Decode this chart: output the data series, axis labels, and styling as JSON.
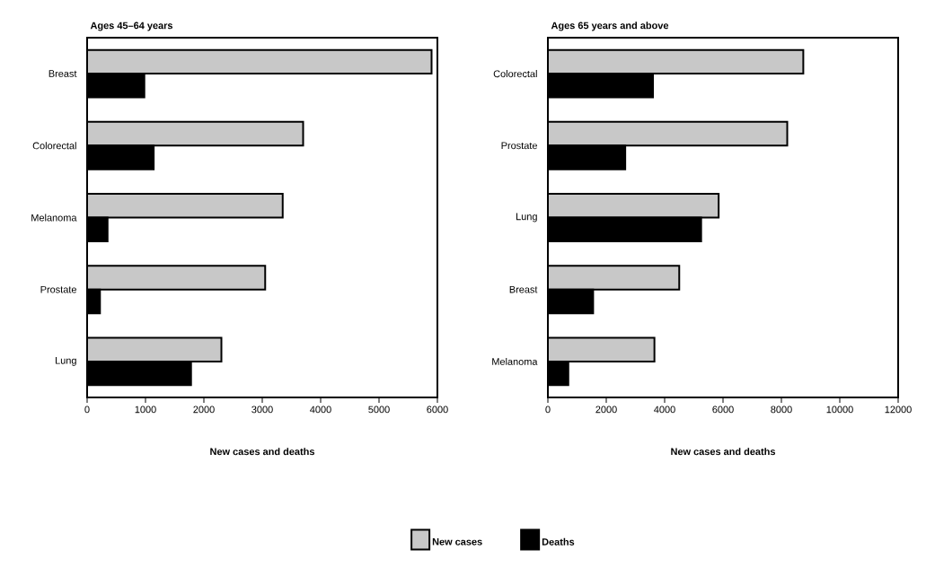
{
  "chart_data": [
    {
      "type": "bar",
      "orientation": "horizontal",
      "title": "Ages 45–64 years",
      "xlabel": "New cases and deaths",
      "categories": [
        "Breast",
        "Colorectal",
        "Melanoma",
        "Prostate",
        "Lung"
      ],
      "series": [
        {
          "name": "New cases",
          "color": "#c8c8c8",
          "values": [
            5900,
            3700,
            3350,
            3050,
            2300
          ]
        },
        {
          "name": "Deaths",
          "color": "#000000",
          "values": [
            980,
            1140,
            350,
            220,
            1780
          ]
        }
      ],
      "xlim": [
        0,
        6000
      ],
      "xticks": [
        0,
        1000,
        2000,
        3000,
        4000,
        5000,
        6000
      ],
      "legend": "bottom"
    },
    {
      "type": "bar",
      "orientation": "horizontal",
      "title": "Ages 65 years and above",
      "xlabel": "New cases and deaths",
      "categories": [
        "Colorectal",
        "Prostate",
        "Lung",
        "Breast",
        "Melanoma"
      ],
      "series": [
        {
          "color": "#c8c8c8",
          "values": [
            8750,
            8200,
            5850,
            4500,
            3650
          ]
        },
        {
          "color": "#000000",
          "values": [
            3600,
            2650,
            5250,
            1550,
            700
          ]
        }
      ],
      "xlim": [
        0,
        12000
      ],
      "xticks": [
        0,
        2000,
        4000,
        6000,
        8000,
        10000,
        12000
      ]
    }
  ]
}
